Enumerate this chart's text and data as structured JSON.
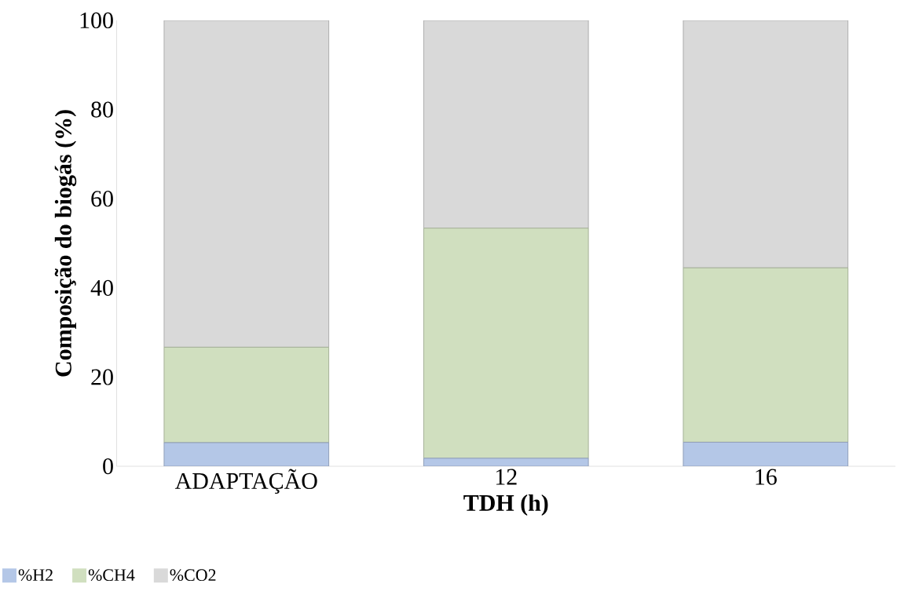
{
  "chart_data": {
    "type": "bar",
    "stacked": true,
    "xlabel": "TDH (h)",
    "ylabel": "Composição do biogás (%)",
    "categories": [
      "ADAPTAÇÃO",
      "12",
      "16"
    ],
    "series": [
      {
        "name": "%H2",
        "color": "#b4c7e7",
        "values": [
          5.3,
          1.8,
          5.4
        ]
      },
      {
        "name": "%CH4",
        "color": "#d0dfbf",
        "values": [
          21.4,
          51.6,
          39.1
        ]
      },
      {
        "name": "%CO2",
        "color": "#d9d9d9",
        "values": [
          73.3,
          46.6,
          55.5
        ]
      }
    ],
    "ylim": [
      0,
      100
    ],
    "yticks": [
      0,
      20,
      40,
      60,
      80,
      100
    ],
    "grid": false,
    "legend": "bottom left"
  }
}
